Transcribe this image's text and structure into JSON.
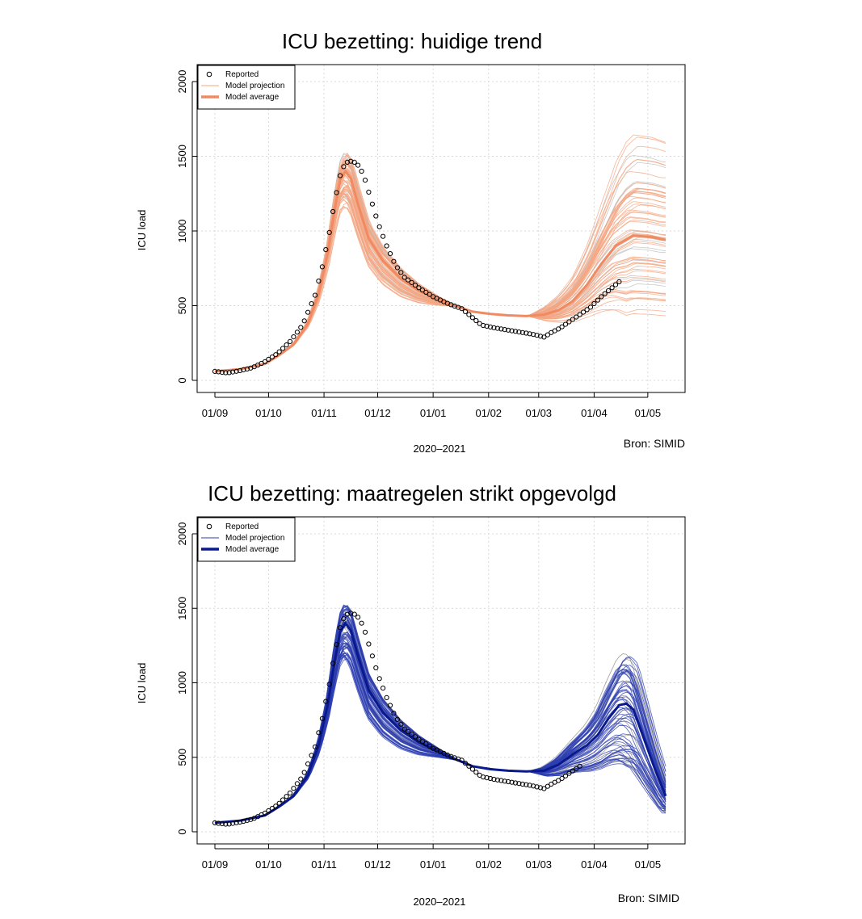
{
  "chart_data": [
    {
      "type": "line",
      "title": "ICU bezetting: huidige trend",
      "xlabel": "2020–2021",
      "ylabel": "ICU load",
      "source": "Bron: SIMID",
      "x_tick_labels": [
        "01/09",
        "01/10",
        "01/11",
        "01/12",
        "01/01",
        "01/02",
        "01/03",
        "01/04",
        "01/05"
      ],
      "y_ticks": [
        0,
        500,
        1000,
        1500,
        2000
      ],
      "ylim": [
        0,
        2000
      ],
      "grid": true,
      "legend": {
        "position": "top-left",
        "entries": [
          "Reported",
          "Model projection",
          "Model average"
        ]
      },
      "colors": {
        "projection": "#f4a582",
        "average": "#ef8a62",
        "reported": "#000000",
        "ensemble_gray": "#bdbdbd"
      },
      "series": [
        {
          "name": "Model average",
          "points": [
            [
              0,
              60
            ],
            [
              14,
              75
            ],
            [
              28,
              110
            ],
            [
              36,
              170
            ],
            [
              44,
              240
            ],
            [
              52,
              380
            ],
            [
              58,
              580
            ],
            [
              63,
              850
            ],
            [
              67,
              1150
            ],
            [
              70,
              1340
            ],
            [
              73,
              1400
            ],
            [
              76,
              1350
            ],
            [
              80,
              1180
            ],
            [
              86,
              950
            ],
            [
              94,
              800
            ],
            [
              104,
              680
            ],
            [
              114,
              600
            ],
            [
              124,
              545
            ],
            [
              134,
              500
            ],
            [
              144,
              460
            ],
            [
              154,
              445
            ],
            [
              164,
              435
            ],
            [
              174,
              430
            ],
            [
              184,
              440
            ],
            [
              192,
              470
            ],
            [
              200,
              530
            ],
            [
              208,
              640
            ],
            [
              216,
              780
            ],
            [
              224,
              900
            ],
            [
              234,
              970
            ],
            [
              244,
              960
            ],
            [
              252,
              940
            ]
          ]
        },
        {
          "name": "Reported",
          "points": [
            [
              0,
              60
            ],
            [
              7,
              50
            ],
            [
              14,
              65
            ],
            [
              21,
              85
            ],
            [
              28,
              125
            ],
            [
              35,
              180
            ],
            [
              42,
              260
            ],
            [
              49,
              370
            ],
            [
              56,
              570
            ],
            [
              60,
              760
            ],
            [
              64,
              990
            ],
            [
              67,
              1200
            ],
            [
              70,
              1370
            ],
            [
              72,
              1430
            ],
            [
              74,
              1460
            ],
            [
              77,
              1470
            ],
            [
              80,
              1440
            ],
            [
              83,
              1380
            ],
            [
              87,
              1220
            ],
            [
              91,
              1060
            ],
            [
              96,
              900
            ],
            [
              101,
              770
            ],
            [
              106,
              690
            ],
            [
              114,
              620
            ],
            [
              122,
              560
            ],
            [
              131,
              510
            ],
            [
              138,
              480
            ],
            [
              143,
              430
            ],
            [
              149,
              370
            ],
            [
              157,
              350
            ],
            [
              167,
              330
            ],
            [
              177,
              310
            ],
            [
              184,
              290
            ],
            [
              188,
              320
            ],
            [
              193,
              350
            ],
            [
              199,
              400
            ],
            [
              204,
              440
            ],
            [
              210,
              490
            ],
            [
              216,
              560
            ],
            [
              222,
              620
            ],
            [
              226,
              660
            ]
          ]
        }
      ]
    },
    {
      "type": "line",
      "title": "ICU bezetting: maatregelen strikt opgevolgd",
      "xlabel": "2020–2021",
      "ylabel": "ICU load",
      "source": "Bron: SIMID",
      "x_tick_labels": [
        "01/09",
        "01/10",
        "01/11",
        "01/12",
        "01/01",
        "01/02",
        "01/03",
        "01/04",
        "01/05"
      ],
      "y_ticks": [
        0,
        500,
        1000,
        1500,
        2000
      ],
      "ylim": [
        0,
        2000
      ],
      "grid": true,
      "legend": {
        "position": "top-left",
        "entries": [
          "Reported",
          "Model projection",
          "Model average"
        ]
      },
      "colors": {
        "projection": "#2b3cb0",
        "average": "#0a1a8c",
        "reported": "#000000",
        "ensemble_gray": "#8a8a8a"
      },
      "series": [
        {
          "name": "Model average",
          "points": [
            [
              0,
              60
            ],
            [
              14,
              75
            ],
            [
              28,
              110
            ],
            [
              36,
              170
            ],
            [
              44,
              240
            ],
            [
              52,
              380
            ],
            [
              58,
              580
            ],
            [
              63,
              850
            ],
            [
              67,
              1150
            ],
            [
              70,
              1340
            ],
            [
              73,
              1400
            ],
            [
              76,
              1350
            ],
            [
              80,
              1180
            ],
            [
              86,
              950
            ],
            [
              94,
              800
            ],
            [
              104,
              680
            ],
            [
              114,
              600
            ],
            [
              124,
              545
            ],
            [
              134,
              490
            ],
            [
              144,
              440
            ],
            [
              154,
              420
            ],
            [
              164,
              410
            ],
            [
              174,
              405
            ],
            [
              184,
              410
            ],
            [
              192,
              450
            ],
            [
              200,
              520
            ],
            [
              208,
              580
            ],
            [
              214,
              650
            ],
            [
              220,
              760
            ],
            [
              226,
              850
            ],
            [
              230,
              860
            ],
            [
              234,
              820
            ],
            [
              240,
              620
            ],
            [
              246,
              420
            ],
            [
              252,
              240
            ]
          ]
        },
        {
          "name": "Reported",
          "points": [
            [
              0,
              60
            ],
            [
              7,
              50
            ],
            [
              14,
              65
            ],
            [
              21,
              85
            ],
            [
              28,
              125
            ],
            [
              35,
              180
            ],
            [
              42,
              260
            ],
            [
              49,
              370
            ],
            [
              56,
              570
            ],
            [
              60,
              760
            ],
            [
              64,
              990
            ],
            [
              67,
              1200
            ],
            [
              70,
              1370
            ],
            [
              72,
              1430
            ],
            [
              74,
              1460
            ],
            [
              77,
              1470
            ],
            [
              80,
              1440
            ],
            [
              83,
              1380
            ],
            [
              87,
              1220
            ],
            [
              91,
              1060
            ],
            [
              96,
              900
            ],
            [
              101,
              770
            ],
            [
              106,
              690
            ],
            [
              114,
              620
            ],
            [
              122,
              560
            ],
            [
              131,
              510
            ],
            [
              138,
              480
            ],
            [
              143,
              430
            ],
            [
              149,
              370
            ],
            [
              157,
              350
            ],
            [
              167,
              330
            ],
            [
              177,
              310
            ],
            [
              184,
              290
            ],
            [
              188,
              320
            ],
            [
              193,
              350
            ],
            [
              199,
              400
            ],
            [
              204,
              440
            ]
          ]
        }
      ]
    }
  ]
}
